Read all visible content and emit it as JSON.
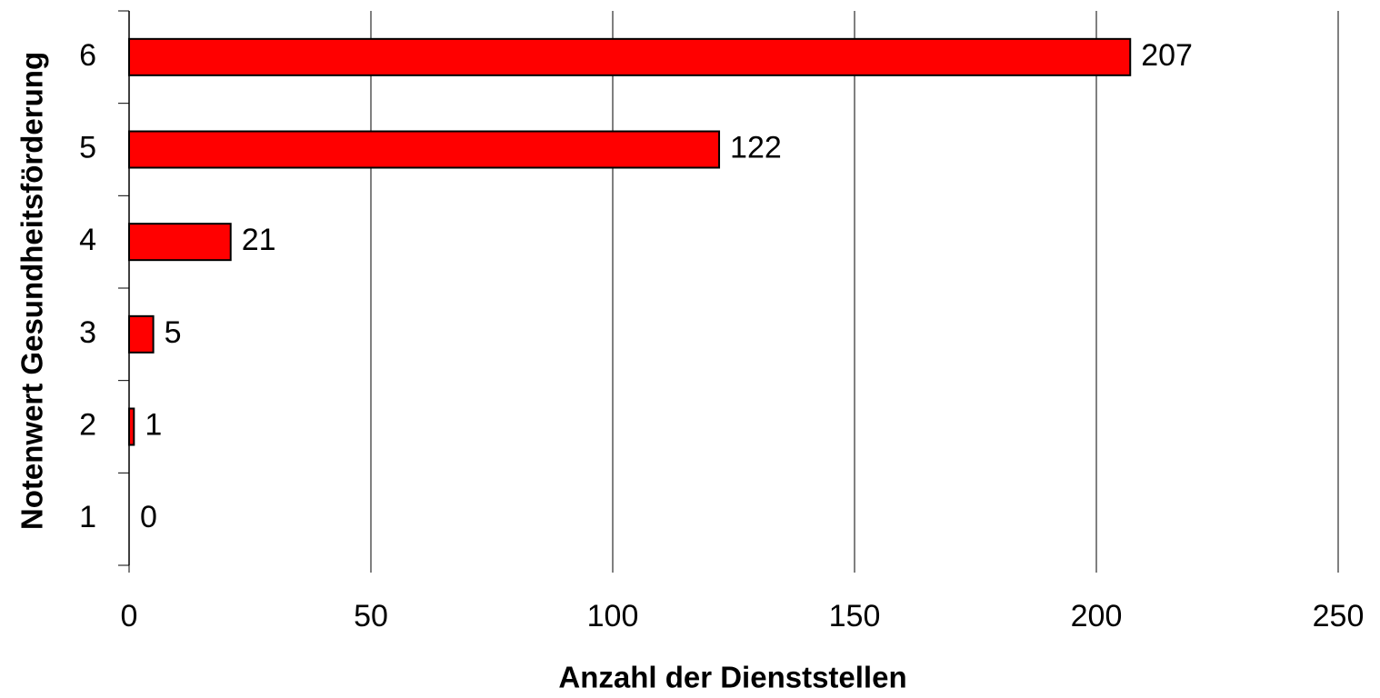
{
  "chart_data": {
    "type": "barh",
    "xlabel": "Anzahl der Dienststellen",
    "ylabel": "Notenwert Gesundheitsförderung",
    "categories": [
      "1",
      "2",
      "3",
      "4",
      "5",
      "6"
    ],
    "values": [
      0,
      1,
      5,
      21,
      122,
      207
    ],
    "color": "#ff0000",
    "xlim": [
      0,
      250
    ],
    "xticks": [
      0,
      50,
      100,
      150,
      200,
      250
    ],
    "grid": true
  }
}
